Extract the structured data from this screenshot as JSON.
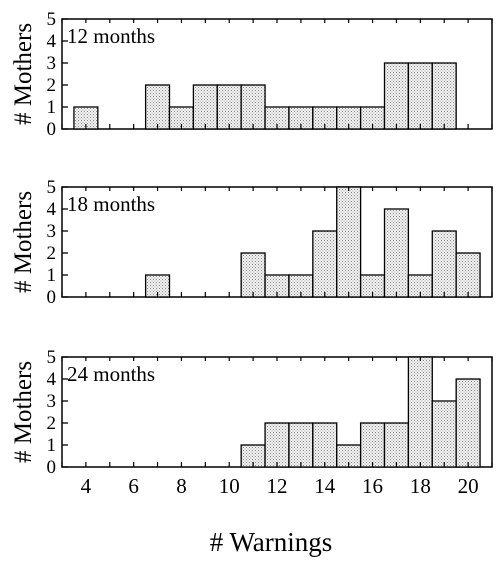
{
  "chart_data": [
    {
      "type": "bar",
      "panel_label": "12 months",
      "ylabel": "# Mothers",
      "ylim": [
        0,
        5
      ],
      "yticks": [
        0,
        1,
        2,
        3,
        4,
        5
      ],
      "xlim": [
        3,
        21
      ],
      "x": [
        4,
        5,
        6,
        7,
        8,
        9,
        10,
        11,
        12,
        13,
        14,
        15,
        16,
        17,
        18,
        19,
        20
      ],
      "values": [
        1,
        0,
        0,
        2,
        1,
        2,
        2,
        2,
        1,
        1,
        1,
        1,
        1,
        3,
        3,
        3,
        0
      ]
    },
    {
      "type": "bar",
      "panel_label": "18 months",
      "ylabel": "# Mothers",
      "ylim": [
        0,
        5
      ],
      "yticks": [
        0,
        1,
        2,
        3,
        4,
        5
      ],
      "xlim": [
        3,
        21
      ],
      "x": [
        4,
        5,
        6,
        7,
        8,
        9,
        10,
        11,
        12,
        13,
        14,
        15,
        16,
        17,
        18,
        19,
        20
      ],
      "values": [
        0,
        0,
        0,
        1,
        0,
        0,
        0,
        2,
        1,
        1,
        3,
        5,
        1,
        4,
        1,
        3,
        2
      ]
    },
    {
      "type": "bar",
      "panel_label": "24 months",
      "ylabel": "# Mothers",
      "ylim": [
        0,
        5
      ],
      "yticks": [
        0,
        1,
        2,
        3,
        4,
        5
      ],
      "xlim": [
        3,
        21
      ],
      "x": [
        4,
        5,
        6,
        7,
        8,
        9,
        10,
        11,
        12,
        13,
        14,
        15,
        16,
        17,
        18,
        19,
        20
      ],
      "values": [
        0,
        0,
        0,
        0,
        0,
        0,
        0,
        1,
        2,
        2,
        2,
        1,
        2,
        2,
        5,
        3,
        4
      ],
      "xticks": [
        4,
        6,
        8,
        10,
        12,
        14,
        16,
        18,
        20
      ]
    }
  ],
  "xlabel": "# Warnings",
  "style": {
    "bar_fill": "#d9d9d9",
    "bar_stroke": "#000000",
    "stipple": "#8a8a8a"
  }
}
